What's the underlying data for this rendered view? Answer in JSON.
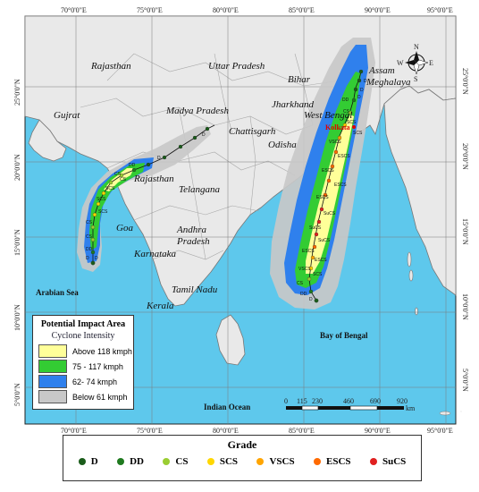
{
  "axes": {
    "top_lon": [
      "70°0'0\"E",
      "75°0'0\"E",
      "80°0'0\"E",
      "85°0'0\"E",
      "90°0'0\"E",
      "95°0'0\"E"
    ],
    "bottom_lon": [
      "70°0'0\"E",
      "75°0'0\"E",
      "80°0'0\"E",
      "85°0'0\"E",
      "90°0'0\"E",
      "95°0'0\"E"
    ],
    "lat": [
      "25°0'0\"N",
      "20°0'0\"N",
      "15°0'0\"N",
      "10°0'0\"N",
      "5°0'0\"N"
    ]
  },
  "regions": {
    "rajasthan_north": "Rajasthan",
    "uttar_pradesh": "Uttar Pradesh",
    "bihar": "Bihar",
    "assam": "Assam",
    "meghalaya": "Meghalaya",
    "gujrat": "Gujrat",
    "madya_pradesh": "Madya Pradesh",
    "jharkhand": "Jharkhand",
    "west_bengal": "West Bengal",
    "chattisgarh": "Chattisgarh",
    "odisha": "Odisha",
    "rajasthan_south": "Rajasthan",
    "telangana": "Telangana",
    "goa": "Goa",
    "andhra": "Andhra",
    "pradesh": "Pradesh",
    "karnataka": "Karnataka",
    "tamil_nadu": "Tamil Nadu",
    "kerala": "Kerala"
  },
  "seas": {
    "arabian": "Arabian Sea",
    "bengal": "Bay of Bengal",
    "indian": "Indian Ocean"
  },
  "city": "Kolkata",
  "compass": {
    "n": "N",
    "e": "E",
    "s": "S",
    "w": "W"
  },
  "legend": {
    "title": "Potential Impact Area",
    "subtitle": "Cyclone Intensity",
    "items": [
      {
        "label": "Above 118 kmph",
        "color": "#ffff99"
      },
      {
        "label": "75 - 117 kmph",
        "color": "#33cc33"
      },
      {
        "label": "62- 74 kmph",
        "color": "#2f80ed"
      },
      {
        "label": "Below 61 kmph",
        "color": "#c8c8c8"
      }
    ]
  },
  "scalebar": {
    "ticks": [
      "0",
      "115",
      "230",
      "460",
      "690",
      "920"
    ],
    "unit": "km"
  },
  "grade": {
    "title": "Grade",
    "items": [
      {
        "label": "D",
        "color": "#1a5c1a"
      },
      {
        "label": "DD",
        "color": "#1f7a1f"
      },
      {
        "label": "CS",
        "color": "#9acd32"
      },
      {
        "label": "SCS",
        "color": "#ffd700"
      },
      {
        "label": "VSCS",
        "color": "#ffa500"
      },
      {
        "label": "ESCS",
        "color": "#ff6a00"
      },
      {
        "label": "SuCS",
        "color": "#e02020"
      }
    ]
  },
  "track_labels": {
    "east": [
      "D",
      "D",
      "D",
      "DD",
      "CS",
      "SCS",
      "SCS",
      "VSCS",
      "ESCS",
      "ESCS",
      "ESCS",
      "ESCS",
      "SuCS",
      "SuCS",
      "SuCS",
      "ESCS",
      "ESCS",
      "VSCS",
      "SCS",
      "CS",
      "DD",
      "D"
    ],
    "west": [
      "D",
      "D",
      "DD",
      "CS",
      "CS",
      "SCS",
      "SCS",
      "SCS",
      "CS",
      "CS",
      "DD",
      "D",
      "D"
    ]
  },
  "colors": {
    "ocean": "#5ec8ec",
    "land": "#e9e9e9",
    "border": "#9a9a9a"
  }
}
